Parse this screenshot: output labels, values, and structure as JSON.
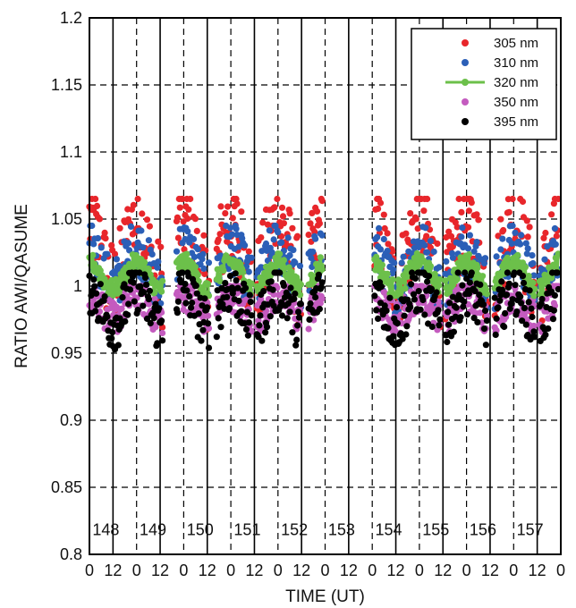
{
  "chart_data": {
    "type": "scatter",
    "xlabel": "TIME (UT)",
    "ylabel": "RATIO AWI/QASUME",
    "ylim": [
      0.8,
      1.2
    ],
    "yticks": [
      "0.8",
      "0.85",
      "0.9",
      "0.95",
      "1",
      "1.05",
      "1.1",
      "1.15",
      "1.2"
    ],
    "xlim_days": [
      147.5,
      157.5
    ],
    "xtick_labels": [
      "0",
      "12",
      "0",
      "12",
      "0",
      "12",
      "0",
      "12",
      "0",
      "12",
      "0",
      "12",
      "0",
      "12",
      "0",
      "12",
      "0",
      "12",
      "0",
      "12",
      "0"
    ],
    "day_labels": [
      "148",
      "149",
      "150",
      "151",
      "152",
      "153",
      "154",
      "155",
      "156",
      "157"
    ],
    "grid": true,
    "legend_position": "top-right",
    "series": [
      {
        "name": "305 nm",
        "color": "#e8262b",
        "marker": "dot",
        "ratio_min": 0.96,
        "ratio_max": 1.065,
        "mean_level": 1.025
      },
      {
        "name": "310 nm",
        "color": "#2b5fb7",
        "marker": "dot",
        "ratio_min": 0.98,
        "ratio_max": 1.045,
        "mean_level": 1.015
      },
      {
        "name": "320 nm",
        "color": "#6cc04a",
        "marker": "line-dot",
        "ratio_min": 0.985,
        "ratio_max": 1.03,
        "mean_level": 1.008
      },
      {
        "name": "350 nm",
        "color": "#c45bbf",
        "marker": "dot",
        "ratio_min": 0.96,
        "ratio_max": 1.0,
        "mean_level": 0.985
      },
      {
        "name": "395 nm",
        "color": "#000000",
        "marker": "dot",
        "ratio_min": 0.95,
        "ratio_max": 1.01,
        "mean_level": 0.985
      }
    ]
  }
}
